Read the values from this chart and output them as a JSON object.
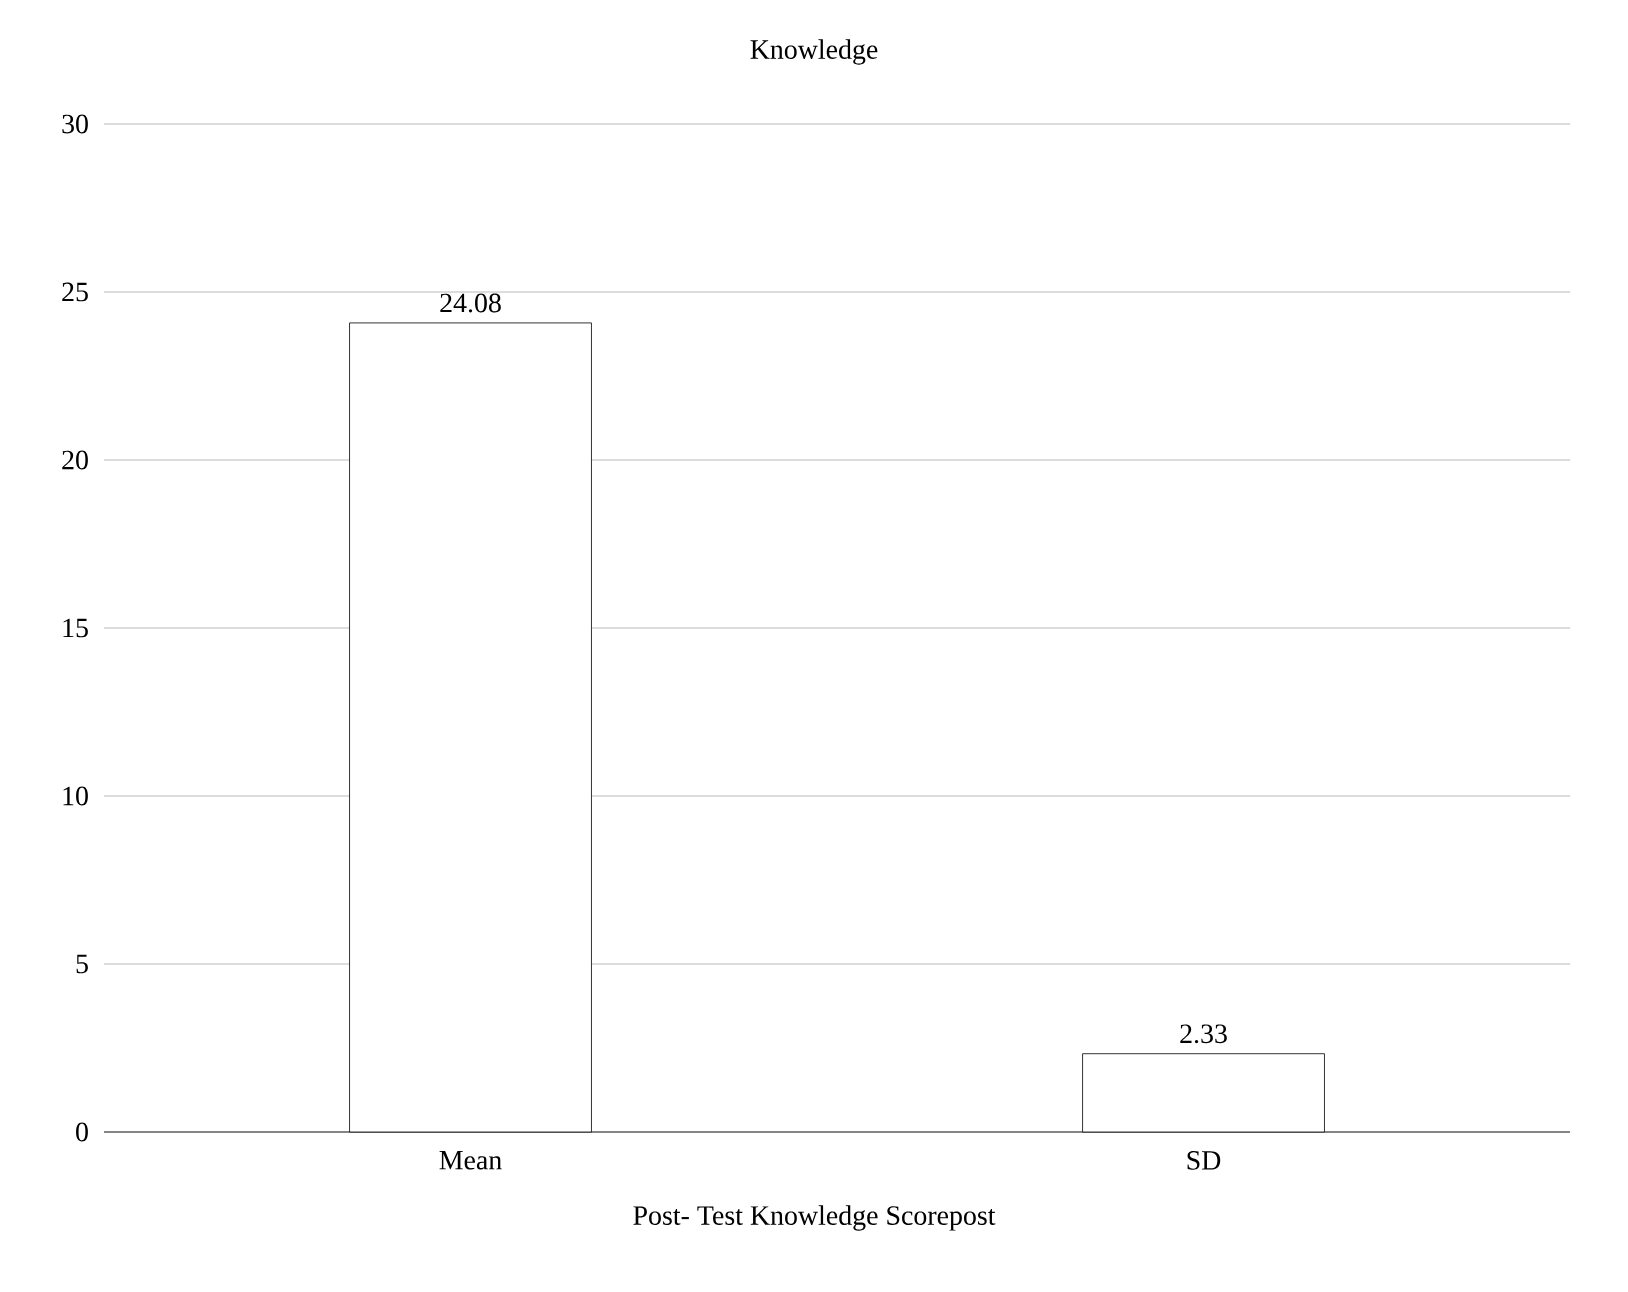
{
  "chart_data": {
    "type": "bar",
    "title": "Knowledge",
    "xlabel": "Post- Test Knowledge Scorepost",
    "categories": [
      "Mean",
      "SD"
    ],
    "values": [
      24.08,
      2.33
    ],
    "ylim": [
      0,
      30
    ],
    "yticks": [
      0,
      5,
      10,
      15,
      20,
      25,
      30
    ],
    "grid": "y",
    "data_labels": true
  }
}
